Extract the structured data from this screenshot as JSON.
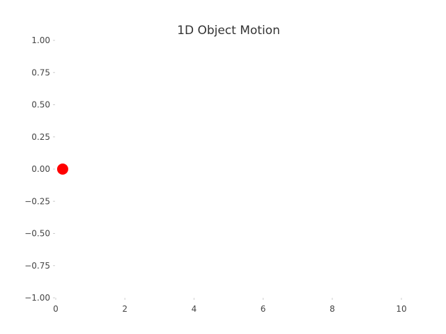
{
  "chart_data": {
    "type": "scatter",
    "title": "1D Object Motion",
    "xlabel": "",
    "ylabel": "",
    "xlim": [
      0,
      10
    ],
    "ylim": [
      -1.0,
      1.0
    ],
    "x_ticks": [
      "0",
      "2",
      "4",
      "6",
      "8",
      "10"
    ],
    "x_tick_values": [
      0,
      2,
      4,
      6,
      8,
      10
    ],
    "y_ticks": [
      "1.00",
      "0.75",
      "0.50",
      "0.25",
      "0.00",
      "−0.25",
      "−0.50",
      "−0.75",
      "−1.00"
    ],
    "y_tick_values": [
      1.0,
      0.75,
      0.5,
      0.25,
      0.0,
      -0.25,
      -0.5,
      -0.75,
      -1.0
    ],
    "grid": false,
    "series": [
      {
        "x": [
          0.2
        ],
        "y": [
          0.0
        ],
        "color": "#ff0000"
      }
    ]
  }
}
